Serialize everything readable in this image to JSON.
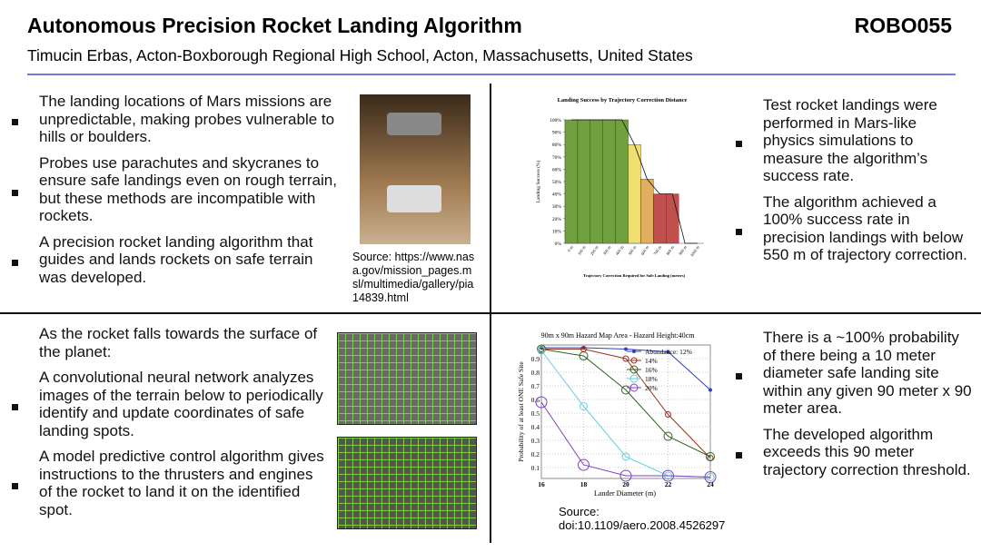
{
  "header": {
    "title": "Autonomous Precision Rocket Landing Algorithm",
    "code": "ROBO055",
    "authors": "Timucin Erbas, Acton-Boxborough Regional High School, Acton, Massachusetts, United States"
  },
  "top_left": {
    "bullets": [
      "The landing locations of Mars missions are unpredictable, making probes vulnerable to hills or boulders.",
      "Probes use parachutes and skycranes to ensure safe landings even on rough terrain, but these methods are incompatible with rockets.",
      "A precision rocket landing algorithm that guides and lands rockets on safe terrain was developed."
    ],
    "image_source": "Source: https://www.nasa.gov/mission_pages.msl/multimedia/gallery/pia14839.html"
  },
  "top_right": {
    "bullets": [
      "Test rocket landings were performed in Mars-like physics simulations to measure the algorithm’s success rate.",
      "The algorithm achieved a 100% success rate in precision landings with below 550 m of trajectory correction."
    ]
  },
  "bottom_left": {
    "intro": "As the rocket falls towards the surface of the planet:",
    "bullets": [
      "A convolutional neural network analyzes images of the terrain below to periodically identify and update coordinates of safe landing spots.",
      "A model predictive control algorithm gives instructions to the thrusters and engines of the rocket to land it on the identified spot."
    ]
  },
  "bottom_right": {
    "bullets": [
      "There is a ~100% probability of there being a 10 meter diameter safe landing site within any given 90 meter x 90 meter area.",
      "The developed algorithm exceeds this 90 meter trajectory correction threshold."
    ],
    "image_source": "Source: doi:10.1109/aero.2008.4526297"
  },
  "charts": [
    {
      "type": "bar",
      "title": "Landing Success by Trajectory Correction Distance",
      "y_label": "Landing Success (%)",
      "x_label": "Trajectory Correction Required for Safe Landing (meters)",
      "categories": [
        "0 m",
        "100 m",
        "200 m",
        "300 m",
        "400 m",
        "500 m",
        "600 m",
        "700 m",
        "800 m",
        "900 m",
        "1000 m"
      ],
      "values": [
        100,
        100,
        100,
        100,
        100,
        80,
        52,
        40,
        40,
        0,
        0
      ],
      "colors": [
        "#70a040",
        "#70a040",
        "#70a040",
        "#70a040",
        "#70a040",
        "#f0de70",
        "#e0b060",
        "#c0504d",
        "#c0504d",
        "#c0504d",
        "#c0504d"
      ],
      "ylim": [
        0,
        100
      ],
      "yticks": [
        {
          "value": 0,
          "label": "0%"
        },
        {
          "value": 10,
          "label": "10%"
        },
        {
          "value": 20,
          "label": "20%"
        },
        {
          "value": 30,
          "label": "30%"
        },
        {
          "value": 40,
          "label": "40%"
        },
        {
          "value": 50,
          "label": "50%"
        },
        {
          "value": 60,
          "label": "60%"
        },
        {
          "value": 70,
          "label": "70%"
        },
        {
          "value": 80,
          "label": "80%"
        },
        {
          "value": 90,
          "label": "90%"
        },
        {
          "value": 100,
          "label": "100%"
        }
      ]
    },
    {
      "type": "line",
      "title": "90m x  90m Hazard Map Area - Hazard Height:40cm",
      "y_label": "Probability of at least ONE Safe Site",
      "x_label": "Lander Diameter (m)",
      "x": [
        16,
        18,
        20,
        22,
        24
      ],
      "xlim": [
        16,
        24
      ],
      "xticks": [
        16,
        18,
        20,
        22,
        24
      ],
      "ylim": [
        0.02,
        1.0
      ],
      "yticks": [
        0.1,
        0.2,
        0.3,
        0.4,
        0.5,
        0.6,
        0.7,
        0.8,
        0.9
      ],
      "grid": true,
      "series": [
        {
          "name": "Abundance: 12%",
          "color": "#3040c0",
          "values": [
            0.98,
            0.98,
            0.97,
            0.95,
            0.67
          ]
        },
        {
          "name": "14%",
          "color": "#a03020",
          "values": [
            0.97,
            0.97,
            0.9,
            0.49,
            0.17
          ]
        },
        {
          "name": "16%",
          "color": "#306020",
          "values": [
            0.97,
            0.92,
            0.67,
            0.33,
            0.18
          ]
        },
        {
          "name": "18%",
          "color": "#60d0e0",
          "values": [
            0.96,
            0.55,
            0.18,
            0.04,
            0.03
          ]
        },
        {
          "name": "20%",
          "color": "#8040c0",
          "values": [
            0.58,
            0.12,
            0.04,
            0.04,
            0.03
          ]
        }
      ]
    }
  ]
}
